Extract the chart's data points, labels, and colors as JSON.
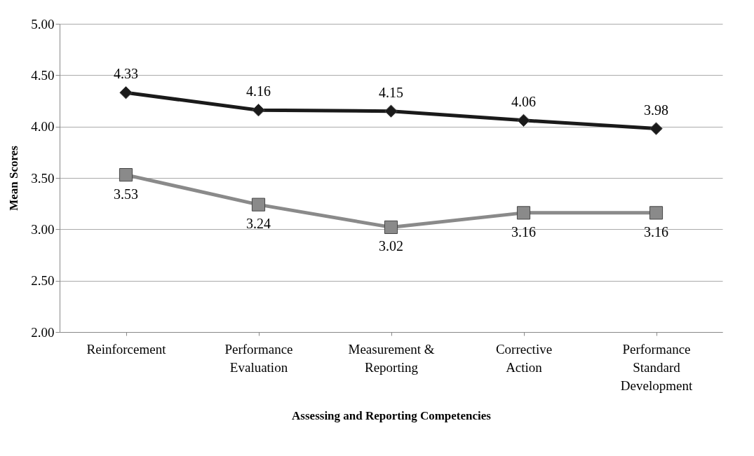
{
  "chart_data": {
    "type": "line",
    "xlabel": "Assessing and Reporting Competencies",
    "ylabel": "Mean Scores",
    "categories": [
      "Reinforcement",
      "Performance Evaluation",
      "Measurement & Reporting",
      "Corrective Action",
      "Performance Standard Development"
    ],
    "series": [
      {
        "color": "#1a1a1a",
        "marker": "diamond",
        "values": [
          4.33,
          4.16,
          4.15,
          4.06,
          3.98
        ]
      },
      {
        "color": "#8a8a8a",
        "marker": "square",
        "values": [
          3.53,
          3.24,
          3.02,
          3.16,
          3.16
        ]
      }
    ],
    "ylim": [
      2,
      5
    ],
    "yticks": [
      {
        "value": 2,
        "label": "2.00"
      },
      {
        "value": 2.5,
        "label": "2.50"
      },
      {
        "value": 3,
        "label": "3.00"
      },
      {
        "value": 3.5,
        "label": "3.50"
      },
      {
        "value": 4,
        "label": "4.00"
      },
      {
        "value": 4.5,
        "label": "4.50"
      },
      {
        "value": 5,
        "label": "5.00"
      }
    ],
    "grid": "y",
    "data_labels": true
  }
}
